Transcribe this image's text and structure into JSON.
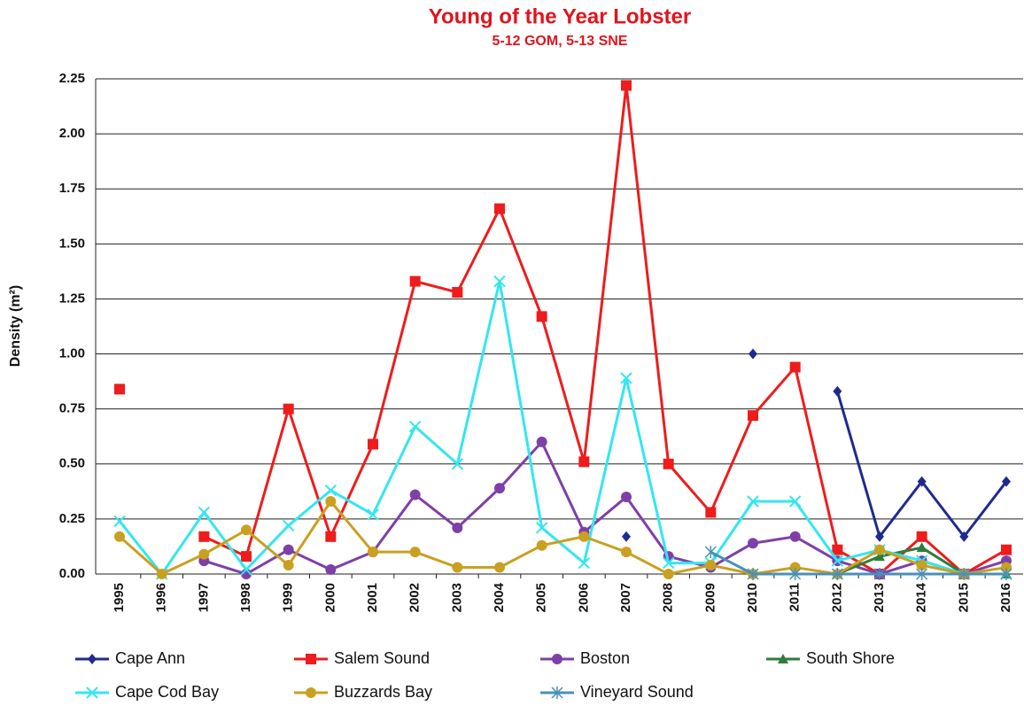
{
  "chart_data": {
    "type": "line",
    "title": "Young of the Year Lobster",
    "subtitle": "5-12 GOM, 5-13 SNE",
    "y_label": "Density (m²)",
    "categories": [
      "1995",
      "1996",
      "1997",
      "1998",
      "1999",
      "2000",
      "2001",
      "2002",
      "2003",
      "2004",
      "2005",
      "2006",
      "2007",
      "2008",
      "2009",
      "2010",
      "2011",
      "2012",
      "2013",
      "2014",
      "2015",
      "2016"
    ],
    "ylim": [
      0,
      2.25
    ],
    "yticks": [
      {
        "value": 0,
        "label": "0.00"
      },
      {
        "value": 0.25,
        "label": "0.25"
      },
      {
        "value": 0.5,
        "label": "0.50"
      },
      {
        "value": 0.75,
        "label": "0.75"
      },
      {
        "value": 1,
        "label": "1.00"
      },
      {
        "value": 1.25,
        "label": "1.25"
      },
      {
        "value": 1.5,
        "label": "1.50"
      },
      {
        "value": 1.75,
        "label": "1.75"
      },
      {
        "value": 2,
        "label": "2.00"
      },
      {
        "value": 2.25,
        "label": "2.25"
      }
    ],
    "grid": true,
    "legend": "bottom",
    "series": [
      {
        "name": "Cape Ann",
        "color": "#1f2a8f",
        "marker": "diamond",
        "values": [
          null,
          null,
          null,
          null,
          null,
          null,
          null,
          null,
          null,
          null,
          null,
          null,
          0.17,
          null,
          null,
          1.0,
          null,
          0.83,
          0.17,
          0.42,
          0.17,
          0.42
        ]
      },
      {
        "name": "Salem Sound",
        "color": "#ee1c1c",
        "marker": "square",
        "values": [
          0.84,
          null,
          0.17,
          0.08,
          0.75,
          0.17,
          0.59,
          1.33,
          1.28,
          1.66,
          1.17,
          0.51,
          2.22,
          0.5,
          0.28,
          0.72,
          0.94,
          0.11,
          0.0,
          0.17,
          0.0,
          0.11
        ]
      },
      {
        "name": "Boston",
        "color": "#7f3fa8",
        "marker": "circle",
        "values": [
          null,
          null,
          0.06,
          0.0,
          0.11,
          0.02,
          0.1,
          0.36,
          0.21,
          0.39,
          0.6,
          0.19,
          0.35,
          0.08,
          0.03,
          0.14,
          0.17,
          0.06,
          0.0,
          0.06,
          0.0,
          0.06
        ]
      },
      {
        "name": "South Shore",
        "color": "#2e7d3a",
        "marker": "triangle",
        "values": [
          null,
          null,
          null,
          null,
          null,
          null,
          null,
          null,
          null,
          null,
          null,
          null,
          null,
          null,
          null,
          null,
          null,
          0.0,
          0.08,
          0.12,
          0.0,
          0.0
        ]
      },
      {
        "name": "Cape Cod Bay",
        "color": "#33e6f0",
        "marker": "x",
        "values": [
          0.24,
          0.0,
          0.28,
          0.02,
          0.22,
          0.38,
          0.27,
          0.67,
          0.5,
          1.33,
          0.21,
          0.05,
          0.89,
          0.05,
          0.05,
          0.33,
          0.33,
          0.06,
          0.11,
          0.06,
          0.0,
          0.0
        ]
      },
      {
        "name": "Buzzards Bay",
        "color": "#c9a020",
        "marker": "circle",
        "values": [
          0.17,
          0.0,
          0.09,
          0.2,
          0.04,
          0.33,
          0.1,
          0.1,
          0.03,
          0.03,
          0.13,
          0.17,
          0.1,
          0.0,
          0.04,
          0.0,
          0.03,
          0.0,
          0.11,
          0.04,
          0.0,
          0.03
        ]
      },
      {
        "name": "Vineyard Sound",
        "color": "#4a90b8",
        "marker": "star",
        "values": [
          null,
          null,
          null,
          null,
          null,
          null,
          null,
          null,
          null,
          null,
          null,
          null,
          null,
          null,
          0.1,
          0.0,
          0.0,
          0.0,
          0.0,
          0.0,
          0.0,
          0.0
        ]
      }
    ]
  }
}
